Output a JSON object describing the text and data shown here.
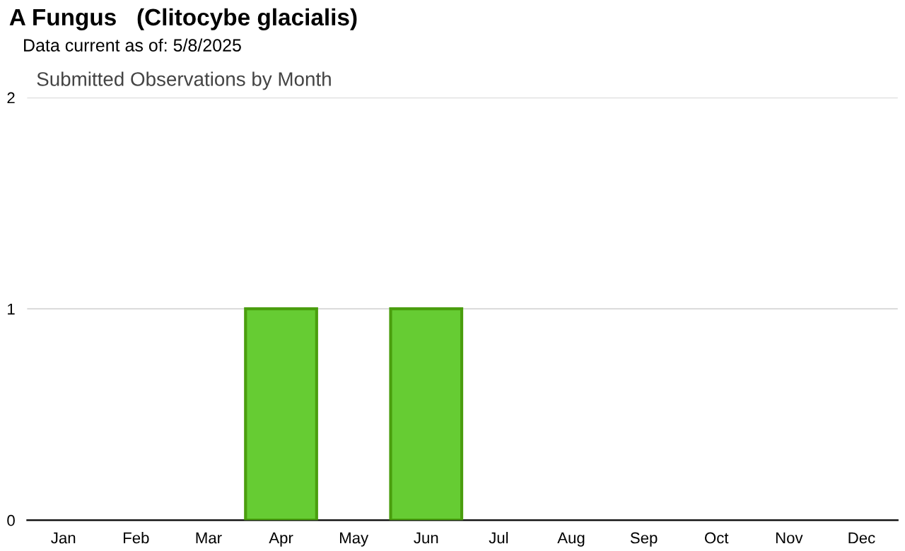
{
  "chart_data": {
    "type": "bar",
    "title": "A Fungus   (Clitocybe glacialis)",
    "subtitle": "Data current as of: 5/8/2025",
    "annotations": [
      "Submitted Observations by Month"
    ],
    "categories": [
      "Jan",
      "Feb",
      "Mar",
      "Apr",
      "May",
      "Jun",
      "Jul",
      "Aug",
      "Sep",
      "Oct",
      "Nov",
      "Dec"
    ],
    "values": [
      0,
      0,
      0,
      1,
      0,
      1,
      0,
      0,
      0,
      0,
      0,
      0
    ],
    "color": "#66cc33",
    "ylim": [
      0,
      2
    ],
    "yticks": [
      0,
      1,
      2
    ],
    "grid": "y"
  }
}
